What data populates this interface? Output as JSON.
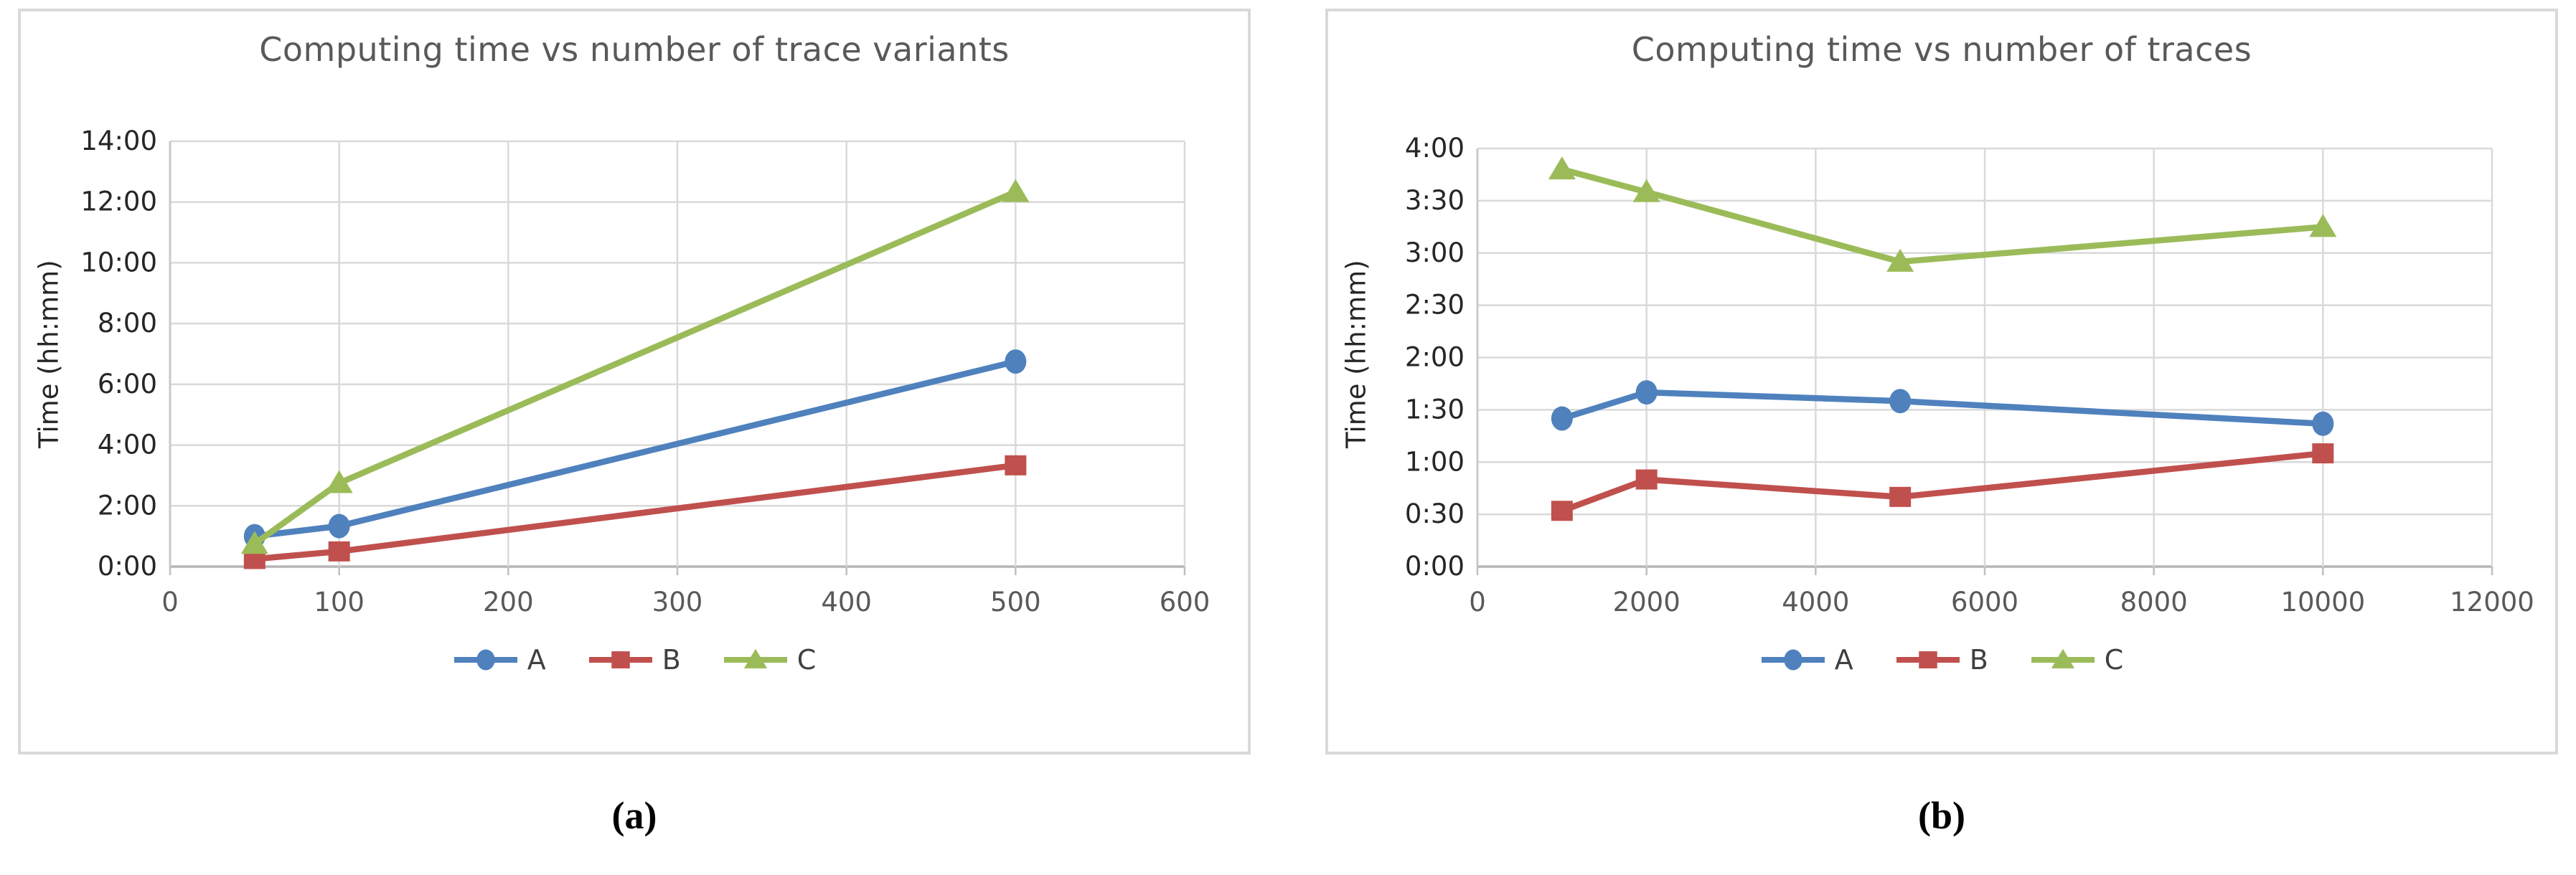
{
  "captions": {
    "a": "(a)",
    "b": "(b)"
  },
  "colors": {
    "blue": "#4F81BD",
    "red": "#C0504D",
    "green": "#9BBB59",
    "grid": "#D9D9D9",
    "axis_x": "#B5B5B5",
    "axis_y": "#C9C9C9",
    "tick_mark": "#BFBFBF",
    "title_text": "#595959",
    "tick_label_y": "#262626",
    "tick_label_x": "#595959",
    "legend_text": "#404040",
    "panel_border": "#D9D9D9"
  },
  "chart_data": [
    {
      "type": "line",
      "panel": "a",
      "title": "Computing time vs number of trace variants",
      "xlabel": "",
      "ylabel": "Time (hh:mm)",
      "x": [
        50,
        100,
        500
      ],
      "xlim": [
        0,
        600
      ],
      "x_ticks": [
        0,
        100,
        200,
        300,
        400,
        500,
        600
      ],
      "ylim_hours": [
        0,
        14
      ],
      "y_ticks": [
        "0:00",
        "2:00",
        "4:00",
        "6:00",
        "8:00",
        "10:00",
        "12:00",
        "14:00"
      ],
      "grid": "on",
      "legend_position": "bottom",
      "series": [
        {
          "name": "A",
          "marker": "circle",
          "color_key": "blue",
          "values": [
            "1:00",
            "1:20",
            "6:45"
          ]
        },
        {
          "name": "B",
          "marker": "square",
          "color_key": "red",
          "values": [
            "0:15",
            "0:30",
            "3:20"
          ]
        },
        {
          "name": "C",
          "marker": "triangle",
          "color_key": "green",
          "values": [
            "0:45",
            "2:45",
            "12:20"
          ]
        }
      ]
    },
    {
      "type": "line",
      "panel": "b",
      "title": "Computing time vs number of traces",
      "xlabel": "",
      "ylabel": "Time (hh:mm)",
      "x": [
        1000,
        2000,
        5000,
        10000
      ],
      "xlim": [
        0,
        12000
      ],
      "x_ticks": [
        0,
        2000,
        4000,
        6000,
        8000,
        10000,
        12000
      ],
      "ylim_hours": [
        0,
        4
      ],
      "y_ticks": [
        "0:00",
        "0:30",
        "1:00",
        "1:30",
        "2:00",
        "2:30",
        "3:00",
        "3:30",
        "4:00"
      ],
      "grid": "on",
      "legend_position": "bottom",
      "series": [
        {
          "name": "A",
          "marker": "circle",
          "color_key": "blue",
          "values": [
            "1:25",
            "1:40",
            "1:35",
            "1:22"
          ]
        },
        {
          "name": "B",
          "marker": "square",
          "color_key": "red",
          "values": [
            "0:32",
            "0:50",
            "0:40",
            "1:05"
          ]
        },
        {
          "name": "C",
          "marker": "triangle",
          "color_key": "green",
          "values": [
            "3:48",
            "3:35",
            "2:55",
            "3:15"
          ]
        }
      ]
    }
  ]
}
